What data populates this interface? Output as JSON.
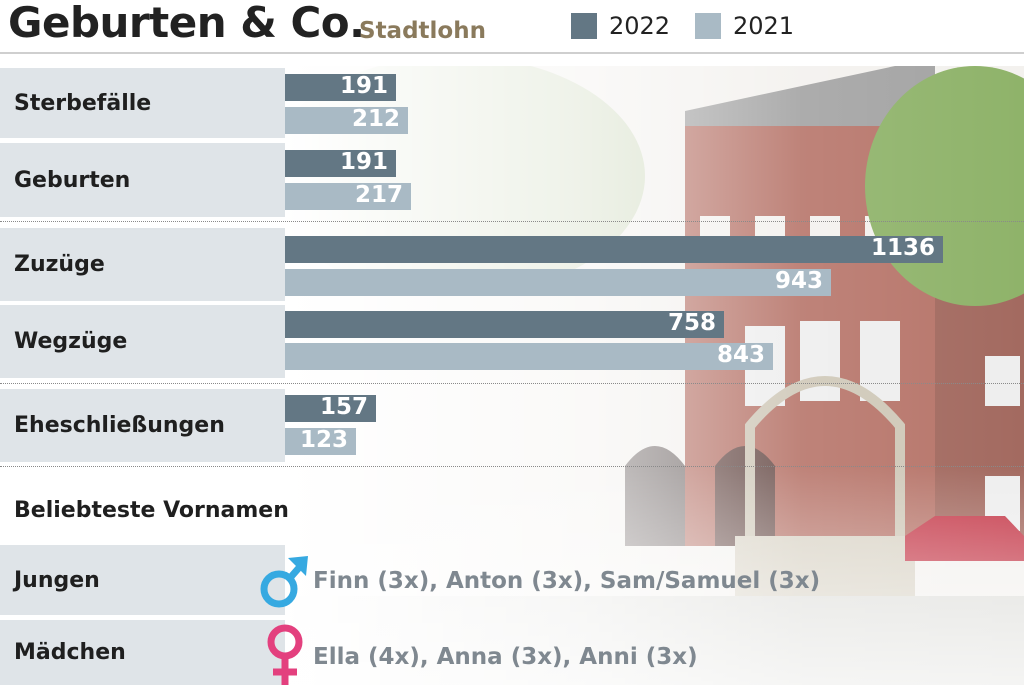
{
  "title": "Geburten & Co.",
  "subtitle": "Stadtlohn",
  "colors": {
    "y2022": "#637784",
    "y2021": "#a9bac5",
    "label_bg": "#dfe4e8",
    "male": "#36a9e1",
    "female": "#e3407e"
  },
  "chart_data": {
    "type": "bar",
    "orientation": "horizontal",
    "categories": [
      "Sterbefälle",
      "Geburten",
      "Zuzüge",
      "Wegzüge",
      "Eheschließungen"
    ],
    "series": [
      {
        "name": "2022",
        "values": [
          191,
          191,
          1136,
          758,
          157
        ]
      },
      {
        "name": "2021",
        "values": [
          212,
          217,
          943,
          843,
          123
        ]
      }
    ],
    "xlim": [
      0,
      1136
    ],
    "legend_position": "top-right",
    "grid": false
  },
  "names_section": {
    "heading": "Beliebteste Vornamen",
    "boys_label": "Jungen",
    "boys_names": "Finn (3x), Anton (3x), Sam/Samuel (3x)",
    "boys_icon": "male-symbol-icon",
    "girls_label": "Mädchen",
    "girls_names": "Ella (4x), Anna (3x), Anni (3x)",
    "girls_icon": "female-symbol-icon"
  }
}
